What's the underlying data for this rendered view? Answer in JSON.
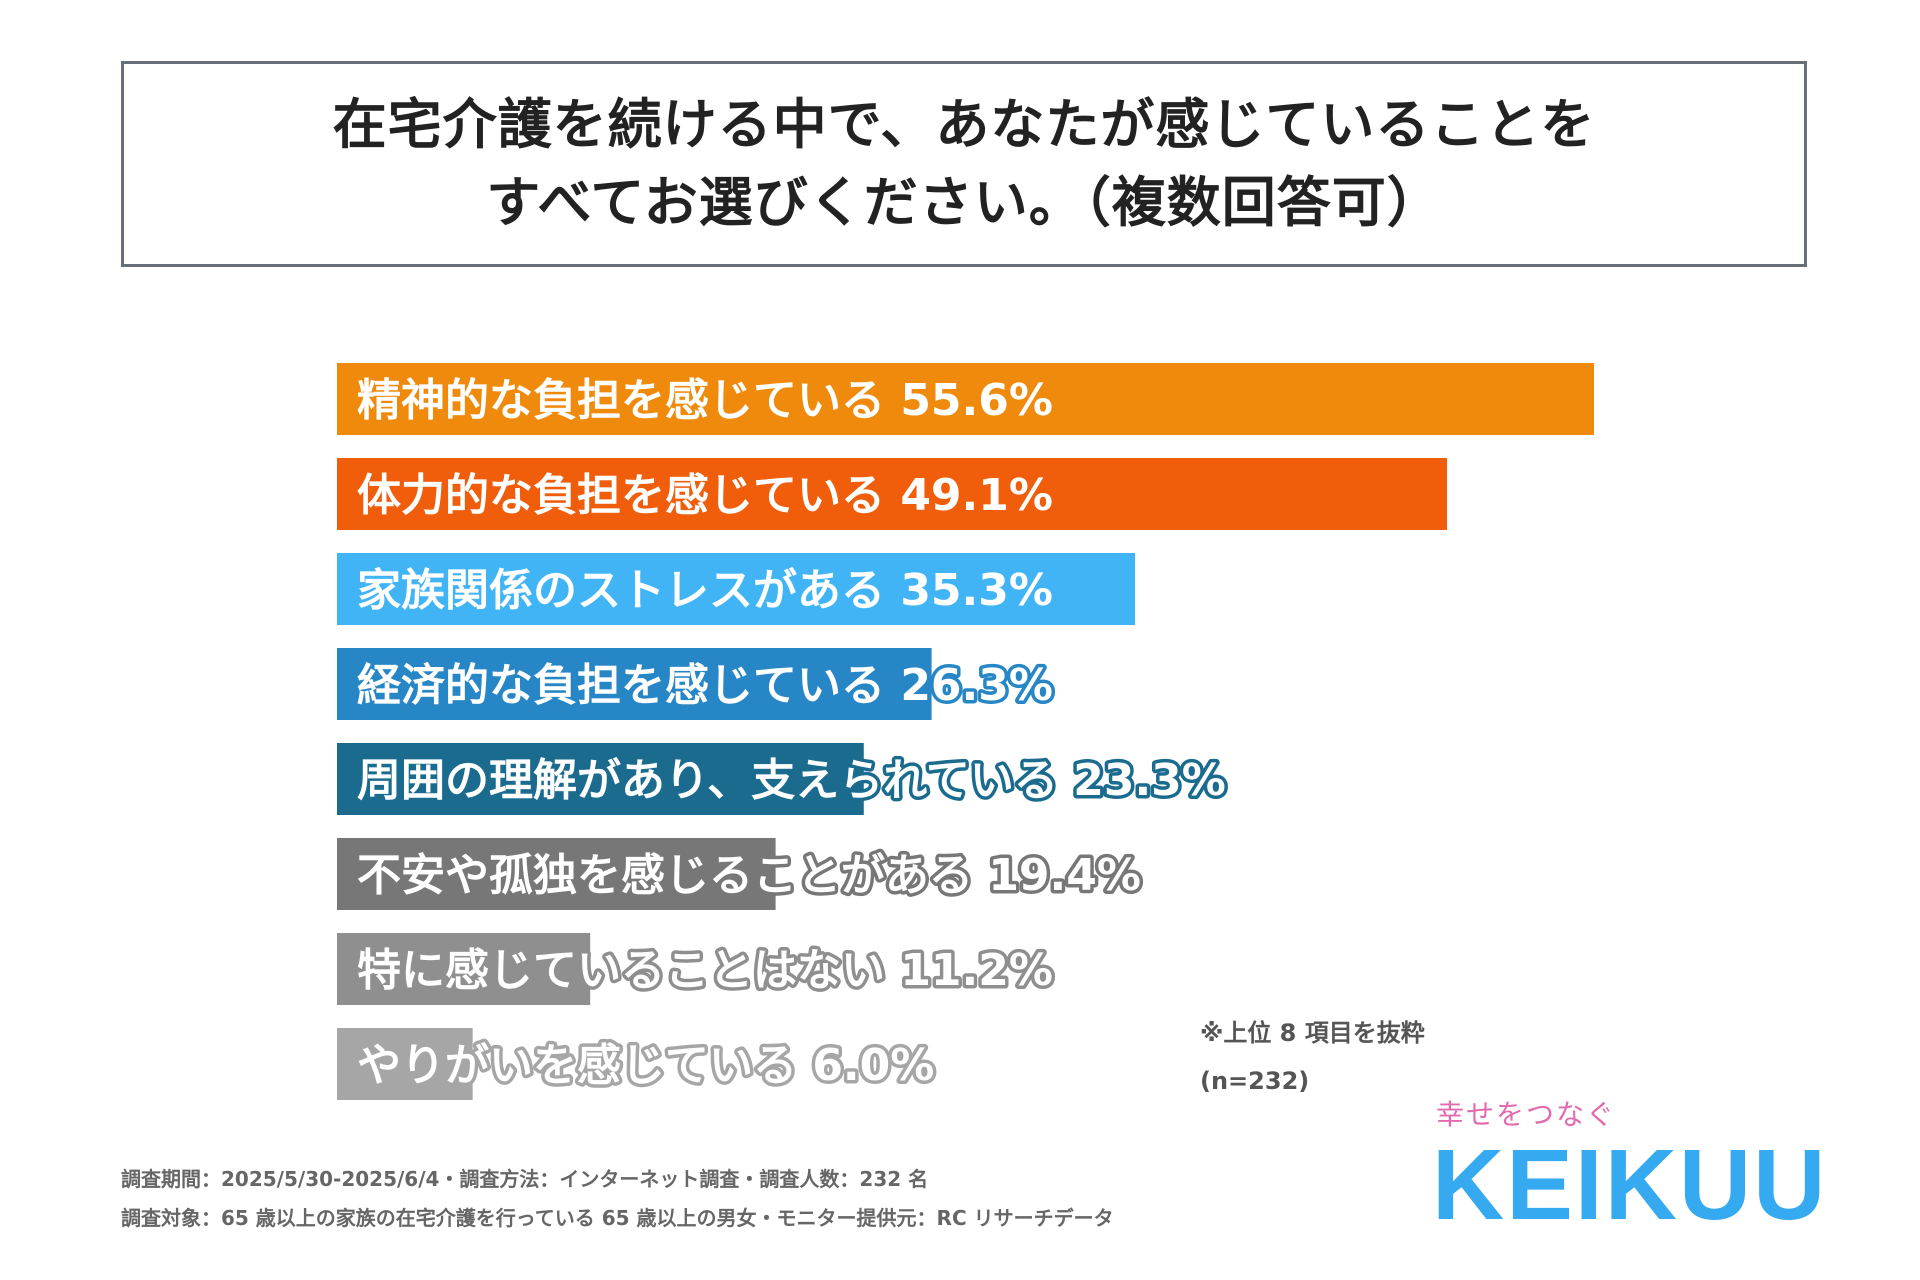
{
  "title": {
    "line1": "在宅介護を続ける中で、あなたが感じていることを",
    "line2": "すべてお選びください。（複数回答可）"
  },
  "chart_data": {
    "type": "bar",
    "orientation": "horizontal",
    "categories": [
      "精神的な負担を感じている",
      "体力的な負担を感じている",
      "家族関係のストレスがある",
      "経済的な負担を感じている",
      "周囲の理解があり、支えられている",
      "不安や孤独を感じることがある",
      "特に感じていることはない",
      "やりがいを感じている"
    ],
    "values": [
      55.6,
      49.1,
      35.3,
      26.3,
      23.3,
      19.4,
      11.2,
      6.0
    ],
    "value_labels": [
      "55.6%",
      "49.1%",
      "35.3%",
      "26.3%",
      "23.3%",
      "19.4%",
      "11.2%",
      "6.0%"
    ],
    "colors": [
      "#f08a0c",
      "#f05d0b",
      "#40b4f5",
      "#2787c6",
      "#1a6b8e",
      "#777777",
      "#8f8f8f",
      "#a6a6a6"
    ],
    "unit": "%",
    "xlim": [
      0,
      56
    ]
  },
  "notes": {
    "extract": "※上位 8 項目を抜粋",
    "n": "(n=232)"
  },
  "footer": {
    "line1": "調査期間：2025/5/30-2025/6/4・調査方法：インターネット調査・調査人数：232 名",
    "line2": "調査対象：65 歳以上の家族の在宅介護を行っている 65 歳以上の男女・モニター提供元：RC リサーチデータ"
  },
  "brand": {
    "tagline": "幸せをつなぐ",
    "logo": "KEIKUU"
  }
}
